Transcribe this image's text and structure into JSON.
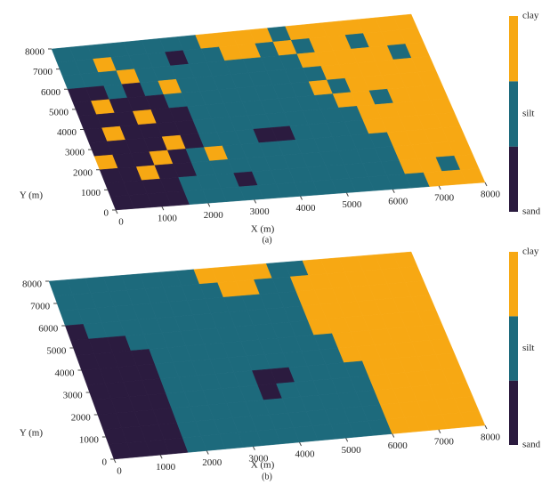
{
  "chart_data": [
    {
      "type": "heatmap",
      "caption": "(a)",
      "xlabel": "X (m)",
      "ylabel": "Y (m)",
      "xlim": [
        0,
        8000
      ],
      "ylim": [
        0,
        8000
      ],
      "xticks": [
        0,
        1000,
        2000,
        3000,
        4000,
        5000,
        6000,
        7000,
        8000
      ],
      "yticks": [
        0,
        1000,
        2000,
        3000,
        4000,
        5000,
        6000,
        7000,
        8000
      ],
      "categories": [
        "sand",
        "silt",
        "clay"
      ],
      "colors": [
        "#2b1b3f",
        "#1d6a7c",
        "#f7a813"
      ],
      "z": [
        [
          1,
          1,
          1,
          1,
          1,
          1,
          1,
          1,
          2,
          2,
          2,
          2,
          1,
          2,
          2,
          2,
          2,
          2,
          2,
          2
        ],
        [
          1,
          1,
          2,
          1,
          1,
          1,
          0,
          1,
          1,
          2,
          2,
          1,
          2,
          1,
          2,
          2,
          1,
          2,
          2,
          2
        ],
        [
          1,
          1,
          1,
          2,
          1,
          1,
          1,
          1,
          1,
          1,
          1,
          1,
          1,
          2,
          2,
          2,
          2,
          2,
          1,
          2
        ],
        [
          0,
          0,
          1,
          0,
          1,
          2,
          1,
          1,
          1,
          1,
          1,
          1,
          1,
          1,
          2,
          2,
          2,
          2,
          2,
          2
        ],
        [
          0,
          2,
          0,
          0,
          0,
          1,
          1,
          1,
          1,
          1,
          1,
          1,
          1,
          2,
          1,
          2,
          2,
          2,
          2,
          2
        ],
        [
          0,
          0,
          0,
          2,
          0,
          0,
          1,
          1,
          1,
          1,
          1,
          1,
          1,
          1,
          2,
          2,
          1,
          2,
          2,
          2
        ],
        [
          0,
          2,
          0,
          0,
          0,
          0,
          1,
          1,
          1,
          1,
          1,
          1,
          1,
          1,
          1,
          2,
          2,
          2,
          2,
          2
        ],
        [
          0,
          0,
          0,
          0,
          2,
          0,
          1,
          1,
          1,
          0,
          0,
          1,
          1,
          1,
          1,
          2,
          2,
          2,
          2,
          2
        ],
        [
          2,
          0,
          0,
          2,
          0,
          1,
          2,
          1,
          1,
          1,
          1,
          1,
          1,
          1,
          1,
          1,
          2,
          2,
          2,
          2
        ],
        [
          0,
          0,
          2,
          0,
          0,
          1,
          1,
          1,
          1,
          1,
          1,
          1,
          1,
          1,
          1,
          1,
          2,
          2,
          2,
          2
        ],
        [
          0,
          0,
          0,
          0,
          1,
          1,
          1,
          0,
          1,
          1,
          1,
          1,
          1,
          1,
          1,
          1,
          2,
          2,
          1,
          2
        ],
        [
          0,
          0,
          0,
          0,
          1,
          1,
          1,
          1,
          1,
          1,
          1,
          1,
          1,
          1,
          1,
          1,
          1,
          2,
          2,
          2
        ]
      ]
    },
    {
      "type": "heatmap",
      "caption": "(b)",
      "xlabel": "X (m)",
      "ylabel": "Y (m)",
      "xlim": [
        0,
        8000
      ],
      "ylim": [
        0,
        8000
      ],
      "xticks": [
        0,
        1000,
        2000,
        3000,
        4000,
        5000,
        6000,
        7000,
        8000
      ],
      "yticks": [
        0,
        1000,
        2000,
        3000,
        4000,
        5000,
        6000,
        7000,
        8000
      ],
      "categories": [
        "sand",
        "silt",
        "clay"
      ],
      "colors": [
        "#2b1b3f",
        "#1d6a7c",
        "#f7a813"
      ],
      "z": [
        [
          1,
          1,
          1,
          1,
          1,
          1,
          1,
          1,
          2,
          2,
          2,
          2,
          1,
          1,
          2,
          2,
          2,
          2,
          2,
          2
        ],
        [
          1,
          1,
          1,
          1,
          1,
          1,
          1,
          1,
          1,
          2,
          2,
          1,
          1,
          2,
          2,
          2,
          2,
          2,
          2,
          2
        ],
        [
          1,
          1,
          1,
          1,
          1,
          1,
          1,
          1,
          1,
          1,
          1,
          1,
          1,
          2,
          2,
          2,
          2,
          2,
          2,
          2
        ],
        [
          0,
          1,
          1,
          1,
          1,
          1,
          1,
          1,
          1,
          1,
          1,
          1,
          1,
          2,
          2,
          2,
          2,
          2,
          2,
          2
        ],
        [
          0,
          0,
          0,
          1,
          1,
          1,
          1,
          1,
          1,
          1,
          1,
          1,
          1,
          2,
          2,
          2,
          2,
          2,
          2,
          2
        ],
        [
          0,
          0,
          0,
          0,
          1,
          1,
          1,
          1,
          1,
          1,
          1,
          1,
          1,
          1,
          2,
          2,
          2,
          2,
          2,
          2
        ],
        [
          0,
          0,
          0,
          0,
          1,
          1,
          1,
          1,
          1,
          1,
          1,
          1,
          1,
          1,
          2,
          2,
          2,
          2,
          2,
          2
        ],
        [
          0,
          0,
          0,
          0,
          1,
          1,
          1,
          1,
          1,
          0,
          0,
          1,
          1,
          1,
          1,
          2,
          2,
          2,
          2,
          2
        ],
        [
          0,
          0,
          0,
          0,
          1,
          1,
          1,
          1,
          1,
          0,
          1,
          1,
          1,
          1,
          1,
          2,
          2,
          2,
          2,
          2
        ],
        [
          0,
          0,
          0,
          0,
          1,
          1,
          1,
          1,
          1,
          1,
          1,
          1,
          1,
          1,
          1,
          2,
          2,
          2,
          2,
          2
        ],
        [
          0,
          0,
          0,
          0,
          1,
          1,
          1,
          1,
          1,
          1,
          1,
          1,
          1,
          1,
          1,
          2,
          2,
          2,
          2,
          2
        ],
        [
          0,
          0,
          0,
          0,
          1,
          1,
          1,
          1,
          1,
          1,
          1,
          1,
          1,
          1,
          1,
          2,
          2,
          2,
          2,
          2
        ]
      ]
    }
  ]
}
